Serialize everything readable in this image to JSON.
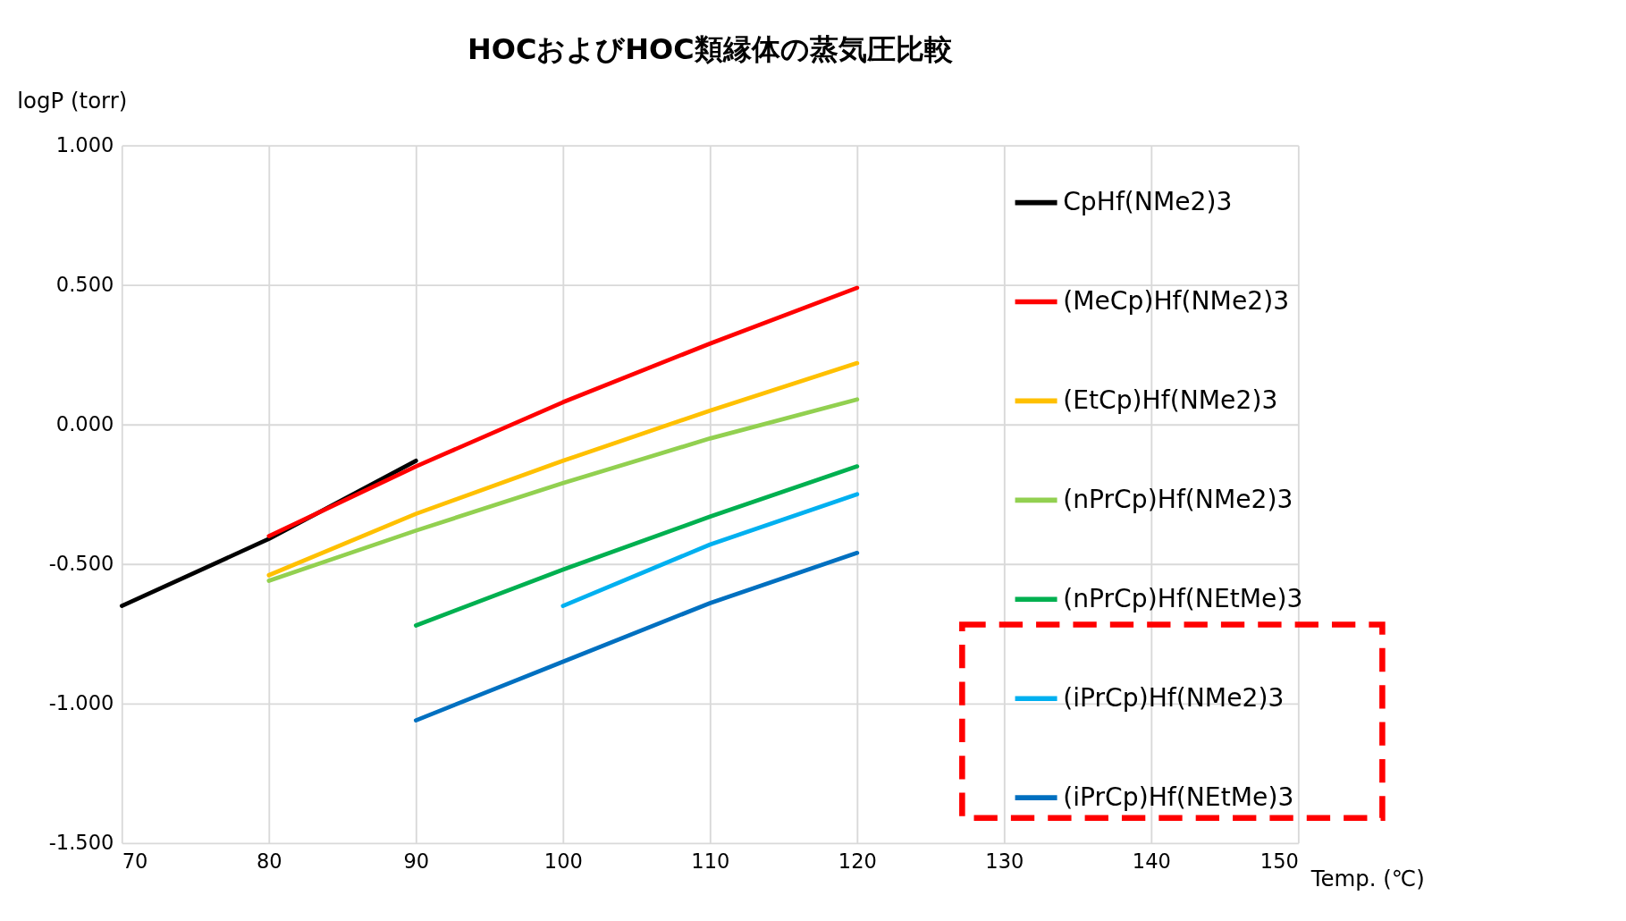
{
  "chart_data": {
    "type": "line",
    "title": "HOCおよびHOC類縁体の蒸気圧比較",
    "xlabel": "Temp. (℃)",
    "ylabel": "logP (torr)",
    "xlim": [
      70,
      150
    ],
    "xticks": [
      70,
      80,
      90,
      100,
      110,
      120,
      130,
      140,
      150
    ],
    "ylim": [
      -1.5,
      1.0
    ],
    "yticks": [
      {
        "value": -1.5,
        "label": "-1.500"
      },
      {
        "value": -1.0,
        "label": "-1.000"
      },
      {
        "value": -0.5,
        "label": "-0.500"
      },
      {
        "value": 0,
        "label": "0.000"
      },
      {
        "value": 0.5,
        "label": "0.500"
      },
      {
        "value": 1.0,
        "label": "1.000"
      }
    ],
    "grid": true,
    "legend": "right",
    "line_style": "solid",
    "marker": "none",
    "series": [
      {
        "name": "CpHf(NMe2)3",
        "color": "#000000",
        "x": [
          70,
          80,
          90
        ],
        "values": [
          -0.65,
          -0.41,
          -0.13
        ]
      },
      {
        "name": "(MeCp)Hf(NMe2)3",
        "color": "#ff0000",
        "x": [
          80,
          90,
          100,
          110,
          120
        ],
        "values": [
          -0.4,
          -0.15,
          0.08,
          0.29,
          0.49
        ]
      },
      {
        "name": "(EtCp)Hf(NMe2)3",
        "color": "#ffc000",
        "x": [
          80,
          90,
          100,
          110,
          120
        ],
        "values": [
          -0.54,
          -0.32,
          -0.13,
          0.05,
          0.22
        ]
      },
      {
        "name": "(nPrCp)Hf(NMe2)3",
        "color": "#92d050",
        "x": [
          80,
          90,
          100,
          110,
          120
        ],
        "values": [
          -0.56,
          -0.38,
          -0.21,
          -0.05,
          0.09
        ]
      },
      {
        "name": "(nPrCp)Hf(NEtMe)3",
        "color": "#00b050",
        "x": [
          90,
          100,
          110,
          120
        ],
        "values": [
          -0.72,
          -0.52,
          -0.33,
          -0.15
        ]
      },
      {
        "name": "(iPrCp)Hf(NMe2)3",
        "color": "#00b0f0",
        "x": [
          100,
          110,
          120
        ],
        "values": [
          -0.65,
          -0.43,
          -0.25
        ]
      },
      {
        "name": "(iPrCp)Hf(NEtMe)3",
        "color": "#0070c0",
        "x": [
          90,
          100,
          110,
          120
        ],
        "values": [
          -1.06,
          -0.85,
          -0.64,
          -0.46
        ]
      }
    ]
  }
}
